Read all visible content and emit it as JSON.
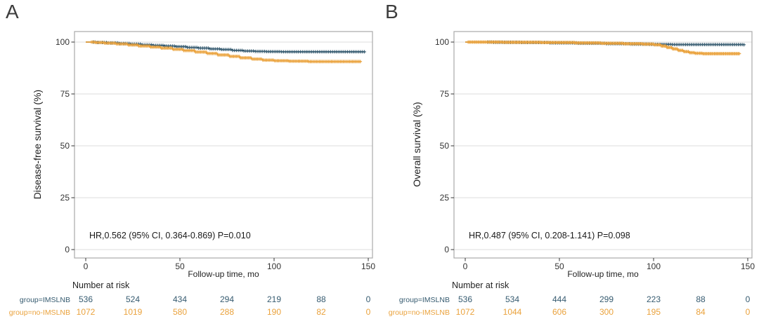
{
  "chart_data": [
    {
      "type": "line",
      "subtype": "kaplan-meier-step",
      "panel_label": "A",
      "ylabel": "Disease-free survival (%)",
      "xlabel": "Follow-up time, mo",
      "annotation": "HR,0.562 (95% CI, 0.364-0.869) P=0.010",
      "xlim": [
        0,
        150
      ],
      "ylim": [
        0,
        100
      ],
      "xticks": [
        0,
        50,
        100,
        150
      ],
      "yticks": [
        0,
        25,
        50,
        75,
        100
      ],
      "grid": "horizontal-only",
      "legend_position": "none",
      "series": [
        {
          "name": "IMSLNB",
          "color": "#365B70",
          "points": [
            [
              0,
              100
            ],
            [
              6,
              99.8
            ],
            [
              12,
              99.6
            ],
            [
              18,
              99.3
            ],
            [
              24,
              99.0
            ],
            [
              30,
              98.7
            ],
            [
              36,
              98.4
            ],
            [
              42,
              98.1
            ],
            [
              48,
              97.8
            ],
            [
              54,
              97.4
            ],
            [
              60,
              97.1
            ],
            [
              66,
              96.7
            ],
            [
              72,
              96.4
            ],
            [
              78,
              96.0
            ],
            [
              84,
              95.7
            ],
            [
              90,
              95.5
            ],
            [
              96,
              95.4
            ],
            [
              104,
              95.3
            ],
            [
              148,
              95.3
            ]
          ],
          "censor_ranges": [
            {
              "from": 4,
              "to": 148,
              "step": 1.0
            }
          ]
        },
        {
          "name": "no-IMSLNB",
          "color": "#EAA23C",
          "points": [
            [
              0,
              100
            ],
            [
              5,
              99.8
            ],
            [
              10,
              99.5
            ],
            [
              16,
              99.1
            ],
            [
              22,
              98.6
            ],
            [
              28,
              98.1
            ],
            [
              34,
              97.6
            ],
            [
              40,
              97.1
            ],
            [
              46,
              96.5
            ],
            [
              52,
              95.9
            ],
            [
              58,
              95.2
            ],
            [
              64,
              94.5
            ],
            [
              70,
              93.8
            ],
            [
              76,
              93.1
            ],
            [
              82,
              92.4
            ],
            [
              88,
              91.8
            ],
            [
              94,
              91.3
            ],
            [
              100,
              91.0
            ],
            [
              108,
              90.8
            ],
            [
              118,
              90.6
            ],
            [
              146,
              90.5
            ]
          ],
          "censor_ranges": [
            {
              "from": 3,
              "to": 146,
              "step": 0.7
            }
          ]
        }
      ],
      "risk_table": {
        "title": "Number at risk",
        "times": [
          0,
          25,
          50,
          75,
          100,
          125,
          150
        ],
        "rows": [
          {
            "label": "group=IMSLNB",
            "color": "#365B70",
            "values": [
              "536",
              "524",
              "434",
              "294",
              "219",
              "88",
              "0"
            ]
          },
          {
            "label": "group=no-IMSLNB",
            "color": "#EAA23C",
            "values": [
              "1072",
              "1019",
              "580",
              "288",
              "190",
              "82",
              "0"
            ]
          }
        ]
      }
    },
    {
      "type": "line",
      "subtype": "kaplan-meier-step",
      "panel_label": "B",
      "ylabel": "Overall survival (%)",
      "xlabel": "Follow-up time, mo",
      "annotation": "HR,0.487 (95% CI, 0.208-1.141) P=0.098",
      "xlim": [
        0,
        150
      ],
      "ylim": [
        0,
        100
      ],
      "xticks": [
        0,
        50,
        100,
        150
      ],
      "yticks": [
        0,
        25,
        50,
        75,
        100
      ],
      "grid": "horizontal-only",
      "legend_position": "none",
      "series": [
        {
          "name": "IMSLNB",
          "color": "#365B70",
          "points": [
            [
              0,
              100
            ],
            [
              15,
              99.9
            ],
            [
              30,
              99.8
            ],
            [
              45,
              99.6
            ],
            [
              60,
              99.4
            ],
            [
              75,
              99.2
            ],
            [
              88,
              99.0
            ],
            [
              98,
              98.9
            ],
            [
              110,
              98.8
            ],
            [
              148,
              98.7
            ]
          ],
          "censor_ranges": [
            {
              "from": 12,
              "to": 148,
              "step": 1.0
            }
          ]
        },
        {
          "name": "no-IMSLNB",
          "color": "#EAA23C",
          "points": [
            [
              0,
              100
            ],
            [
              20,
              99.9
            ],
            [
              40,
              99.8
            ],
            [
              58,
              99.6
            ],
            [
              72,
              99.4
            ],
            [
              84,
              99.2
            ],
            [
              94,
              99.0
            ],
            [
              100,
              98.7
            ],
            [
              104,
              98.1
            ],
            [
              107,
              97.4
            ],
            [
              110,
              96.7
            ],
            [
              113,
              96.0
            ],
            [
              116,
              95.4
            ],
            [
              119,
              94.9
            ],
            [
              122,
              94.6
            ],
            [
              126,
              94.4
            ],
            [
              146,
              94.3
            ]
          ],
          "censor_ranges": [
            {
              "from": 1.5,
              "to": 146,
              "step": 0.6
            }
          ]
        }
      ],
      "risk_table": {
        "title": "Number at risk",
        "times": [
          0,
          25,
          50,
          75,
          100,
          125,
          150
        ],
        "rows": [
          {
            "label": "group=IMSLNB",
            "color": "#365B70",
            "values": [
              "536",
              "534",
              "444",
              "299",
              "223",
              "88",
              "0"
            ]
          },
          {
            "label": "group=no-IMSLNB",
            "color": "#EAA23C",
            "values": [
              "1072",
              "1044",
              "606",
              "300",
              "195",
              "84",
              "0"
            ]
          }
        ]
      }
    }
  ],
  "style_colors": {
    "panel_border": "#a9a9a9",
    "gridline": "#dddddd",
    "tick": "#333333",
    "tick_text": "#333333",
    "panel_label": "#3d3d3d"
  }
}
